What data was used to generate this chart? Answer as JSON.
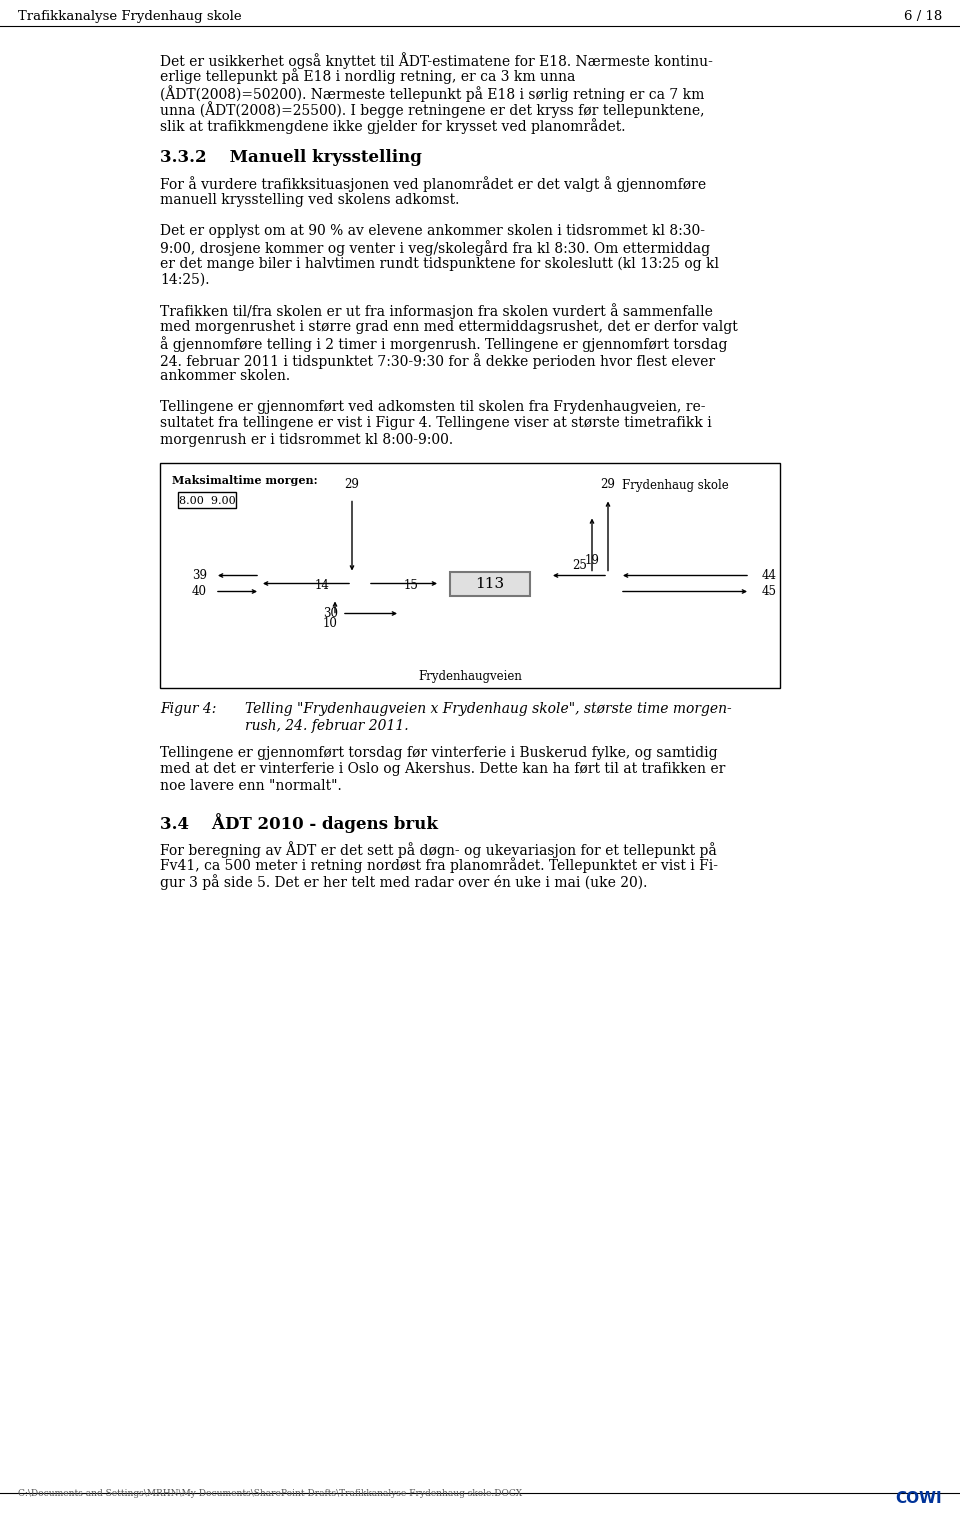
{
  "header_left": "Trafikkanalyse Frydenhaug skole",
  "header_right": "6 / 18",
  "footer_text": "C:\\Documents and Settings\\MRHN\\My Documents\\SharePoint Drafts\\Trafikkanalyse Frydenhaug skole.DOCX",
  "footer_logo": "COWI",
  "para1_lines": [
    "Det er usikkerhet også knyttet til ÅDT-estimatene for E18. Nærmeste kontinu-",
    "erlige tellepunkt på E18 i nordlig retning, er ca 3 km unna",
    "(ÅDT(2008)=50200). Nærmeste tellepunkt på E18 i sørlig retning er ca 7 km",
    "unna (ÅDT(2008)=25500). I begge retningene er det kryss før tellepunktene,",
    "slik at trafikkmengdene ikke gjelder for krysset ved planområdet."
  ],
  "heading1": "3.3.2    Manuell krysstelling",
  "para2_lines": [
    "For å vurdere trafikksituasjonen ved planområdet er det valgt å gjennomføre",
    "manuell krysstelling ved skolens adkomst."
  ],
  "para3_lines": [
    "Det er opplyst om at 90 % av elevene ankommer skolen i tidsrommet kl 8:30-",
    "9:00, drosjene kommer og venter i veg/skolegård fra kl 8:30. Om ettermiddag",
    "er det mange biler i halvtimen rundt tidspunktene for skoleslutt (kl 13:25 og kl",
    "14:25)."
  ],
  "para4_lines": [
    "Trafikken til/fra skolen er ut fra informasjon fra skolen vurdert å sammenfalle",
    "med morgenrushet i større grad enn med ettermiddagsrushet, det er derfor valgt",
    "å gjennomføre telling i 2 timer i morgenrush. Tellingene er gjennomført torsdag",
    "24. februar 2011 i tidspunktet 7:30-9:30 for å dekke perioden hvor flest elever",
    "ankommer skolen."
  ],
  "para5_lines": [
    "Tellingene er gjennomført ved adkomsten til skolen fra Frydenhaugveien, re-",
    "sultatet fra tellingene er vist i Figur 4. Tellingene viser at største timetrafikk i",
    "morgenrush er i tidsrommet kl 8:00-9:00."
  ],
  "para6_lines": [
    "Tellingene er gjennomført torsdag før vinterferie i Buskerud fylke, og samtidig",
    "med at det er vinterferie i Oslo og Akershus. Dette kan ha ført til at trafikken er",
    "noe lavere enn \"normalt\"."
  ],
  "heading2": "3.4    ÅDT 2010 - dagens bruk",
  "para7_lines": [
    "For beregning av ÅDT er det sett på døgn- og ukevariasjon for et tellepunkt på",
    "Fv41, ca 500 meter i retning nordøst fra planområdet. Tellepunktet er vist i Fi-",
    "gur 3 på side 5. Det er her telt med radar over én uke i mai (uke 20)."
  ],
  "fig_caption_label": "Figur 4:",
  "fig_caption_line1": "Telling \"Frydenhaugveien x Frydenhaug skole\", største time morgen-",
  "fig_caption_line2": "rush, 24. februar 2011.",
  "background": "#ffffff",
  "text_color": "#000000"
}
